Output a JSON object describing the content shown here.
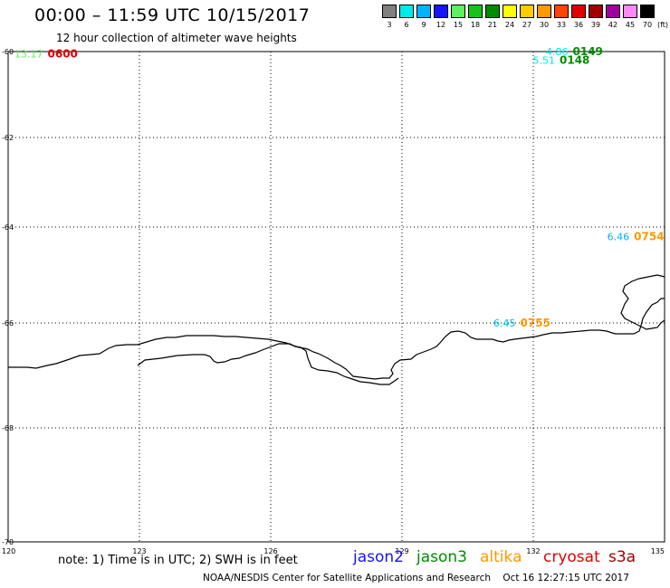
{
  "header": {
    "title": "00:00 – 11:59 UTC 10/15/2017",
    "subtitle": "12 hour collection of altimeter wave heights"
  },
  "color_scale": {
    "unit": "(ft)",
    "entries": [
      {
        "label": "3",
        "color": "#808080"
      },
      {
        "label": "6",
        "color": "#00eaea"
      },
      {
        "label": "9",
        "color": "#00b3ff"
      },
      {
        "label": "12",
        "color": "#1414ff"
      },
      {
        "label": "15",
        "color": "#5ef05e"
      },
      {
        "label": "18",
        "color": "#17c317"
      },
      {
        "label": "21",
        "color": "#008c00"
      },
      {
        "label": "24",
        "color": "#ffff00"
      },
      {
        "label": "27",
        "color": "#ffcc00"
      },
      {
        "label": "30",
        "color": "#ff9900"
      },
      {
        "label": "33",
        "color": "#ff4400"
      },
      {
        "label": "36",
        "color": "#e00000"
      },
      {
        "label": "39",
        "color": "#a00000"
      },
      {
        "label": "42",
        "color": "#a000a0"
      },
      {
        "label": "45",
        "color": "#ff88ff"
      },
      {
        "label": "70",
        "color": "#000000"
      }
    ]
  },
  "axes": {
    "lat_labels": [
      "-60",
      "-62",
      "-64",
      "-66",
      "-68",
      "-70"
    ],
    "lon_labels": [
      "120",
      "123",
      "126",
      "129",
      "132",
      "135"
    ]
  },
  "observations": [
    {
      "lon": 120.9,
      "lat": -60.05,
      "swh": "13.17",
      "time": "0600",
      "swh_color": "#5ef05e",
      "time_color": "#e00000",
      "satellite": "cryosat"
    },
    {
      "lon": 132.9,
      "lat": -59.95,
      "swh": "4.86",
      "time": "0149",
      "swh_color": "#00eaea",
      "time_color": "#008c00",
      "satellite": "jason3"
    },
    {
      "lon": 132.6,
      "lat": -60.2,
      "swh": "5.51",
      "time": "0148",
      "swh_color": "#00eaea",
      "time_color": "#008c00",
      "satellite": "jason3"
    },
    {
      "lon": 134.3,
      "lat": -64.2,
      "swh": "6.46",
      "time": "0754",
      "swh_color": "#00b3ff",
      "time_color": "#ff9900",
      "satellite": "altika"
    },
    {
      "lon": 131.7,
      "lat": -66.0,
      "swh": "6.45",
      "time": "0755",
      "swh_color": "#00b3ff",
      "time_color": "#ff9900",
      "satellite": "altika"
    }
  ],
  "footer": {
    "note": "note: 1) Time is in UTC; 2) SWH is in feet",
    "satellites": [
      {
        "name": "jason2",
        "color": "#1414ff"
      },
      {
        "name": "jason3",
        "color": "#008c00"
      },
      {
        "name": "altika",
        "color": "#ff9900"
      },
      {
        "name": "cryosat",
        "color": "#e00000"
      },
      {
        "name": "s3a",
        "color": "#a00000"
      }
    ],
    "credit": "NOAA/NESDIS Center for Satellite Applications and Research",
    "timestamp": "Oct 16 12:27:15 UTC 2017"
  }
}
